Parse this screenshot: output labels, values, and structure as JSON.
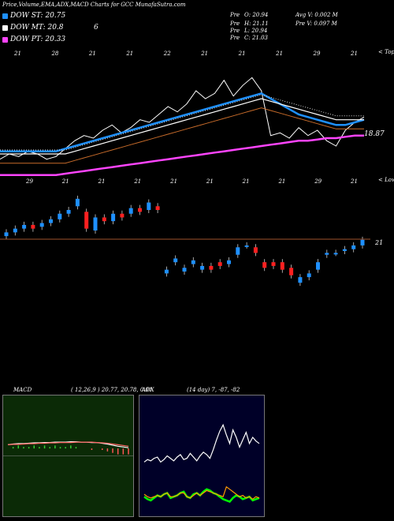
{
  "header": {
    "title": "Price,Volume,EMA,ADX,MACD Charts for GCC MunafaSutra.com",
    "stats": [
      {
        "label": "Pre",
        "value": "O: 20.94"
      },
      {
        "label": "Pre",
        "value": "H: 21.11"
      },
      {
        "label": "Pre",
        "value": "L: 20.94"
      },
      {
        "label": "Pre",
        "value": "C: 21.03"
      }
    ],
    "avg_volume": "Avg V: 0.002  M",
    "pre_volume": "Pre   V: 0.097  M"
  },
  "legend": [
    {
      "label": "DOW ST: 20.75",
      "color": "#1e90ff"
    },
    {
      "label": "DOW MT: 20.8",
      "color": "#ffffff"
    },
    {
      "label": "DOW PT: 20.33",
      "color": "#ff44ff"
    }
  ],
  "legend_extra": "6",
  "chart_data": [
    {
      "type": "line",
      "title": "Price EMA chart",
      "annotations": {
        "last_price": "18.87",
        "upper_note": "< Tops",
        "lower_note": "< Lows"
      },
      "top_date_labels": [
        "21",
        "28",
        "21",
        "21",
        "22",
        "21",
        "21",
        "21",
        "29",
        "21"
      ],
      "bottom_date_labels": [
        "29",
        "21",
        "21",
        "21",
        "21",
        "21",
        "21",
        "21",
        "29",
        "21"
      ],
      "x": [
        1,
        2,
        3,
        4,
        5,
        6,
        7,
        8,
        9,
        10,
        11,
        12,
        13,
        14,
        15,
        16,
        17,
        18,
        19,
        20,
        21,
        22,
        23,
        24,
        25,
        26,
        27,
        28,
        29,
        30,
        31,
        32,
        33,
        34,
        35,
        36,
        37,
        38,
        39,
        40
      ],
      "series": [
        {
          "name": "Price",
          "color": "#ffffff",
          "values": [
            18.3,
            18.5,
            18.4,
            18.6,
            18.5,
            18.3,
            18.4,
            18.7,
            19.0,
            19.2,
            19.1,
            19.4,
            19.6,
            19.3,
            19.5,
            19.8,
            19.7,
            20.0,
            20.3,
            20.1,
            20.4,
            20.9,
            20.6,
            20.8,
            21.3,
            20.7,
            21.1,
            21.4,
            20.9,
            19.2,
            19.3,
            19.1,
            19.5,
            19.2,
            19.4,
            19.0,
            18.8,
            19.4,
            19.7,
            19.9
          ]
        },
        {
          "name": "DOW ST",
          "color": "#1e90ff",
          "values": [
            18.6,
            18.6,
            18.6,
            18.6,
            18.6,
            18.6,
            18.6,
            18.7,
            18.8,
            18.9,
            19.0,
            19.1,
            19.2,
            19.3,
            19.4,
            19.5,
            19.6,
            19.7,
            19.8,
            19.9,
            20.0,
            20.1,
            20.2,
            20.3,
            20.4,
            20.5,
            20.6,
            20.7,
            20.8,
            20.6,
            20.4,
            20.2,
            20.0,
            19.9,
            19.8,
            19.7,
            19.6,
            19.6,
            19.7,
            19.8
          ]
        },
        {
          "name": "DOW MT",
          "color": "#ffffff",
          "values": [
            18.5,
            18.5,
            18.5,
            18.5,
            18.5,
            18.5,
            18.5,
            18.5,
            18.6,
            18.7,
            18.8,
            18.9,
            19.0,
            19.1,
            19.2,
            19.3,
            19.4,
            19.5,
            19.6,
            19.7,
            19.8,
            19.9,
            20.0,
            20.1,
            20.2,
            20.3,
            20.4,
            20.5,
            20.6,
            20.5,
            20.4,
            20.3,
            20.2,
            20.1,
            20.0,
            19.9,
            19.8,
            19.8,
            19.8,
            19.8
          ]
        },
        {
          "name": "DOW PT",
          "color": "#ff44ff",
          "values": [
            17.7,
            17.7,
            17.7,
            17.7,
            17.7,
            17.7,
            17.7,
            17.75,
            17.8,
            17.85,
            17.9,
            17.95,
            18.0,
            18.05,
            18.1,
            18.15,
            18.2,
            18.25,
            18.3,
            18.35,
            18.4,
            18.45,
            18.5,
            18.55,
            18.6,
            18.65,
            18.7,
            18.75,
            18.8,
            18.85,
            18.9,
            18.95,
            19.0,
            19.0,
            19.05,
            19.1,
            19.1,
            19.15,
            19.2,
            19.2
          ]
        }
      ],
      "ylim": [
        17.0,
        21.8
      ]
    },
    {
      "type": "bar",
      "title": "Candles",
      "reference_label": "21",
      "values": [
        {
          "o": 19.0,
          "c": 19.2,
          "up": true
        },
        {
          "o": 19.2,
          "c": 19.4,
          "up": true
        },
        {
          "o": 19.4,
          "c": 19.6,
          "up": true
        },
        {
          "o": 19.6,
          "c": 19.4,
          "up": false
        },
        {
          "o": 19.5,
          "c": 19.7,
          "up": true
        },
        {
          "o": 19.7,
          "c": 19.9,
          "up": true
        },
        {
          "o": 19.9,
          "c": 20.2,
          "up": true
        },
        {
          "o": 20.2,
          "c": 20.4,
          "up": true
        },
        {
          "o": 20.6,
          "c": 21.0,
          "up": true
        },
        {
          "o": 20.3,
          "c": 19.4,
          "up": false
        },
        {
          "o": 19.3,
          "c": 20.0,
          "up": true
        },
        {
          "o": 20.0,
          "c": 19.8,
          "up": false
        },
        {
          "o": 19.8,
          "c": 20.2,
          "up": true
        },
        {
          "o": 20.2,
          "c": 20.0,
          "up": false
        },
        {
          "o": 20.2,
          "c": 20.5,
          "up": true
        },
        {
          "o": 20.5,
          "c": 20.3,
          "up": false
        },
        {
          "o": 20.4,
          "c": 20.8,
          "up": true
        },
        {
          "o": 20.6,
          "c": 20.4,
          "up": false
        },
        {
          "o": 17.2,
          "c": 17.0,
          "up": true
        },
        {
          "o": 17.6,
          "c": 17.8,
          "up": true
        },
        {
          "o": 17.1,
          "c": 17.3,
          "up": true
        },
        {
          "o": 17.5,
          "c": 17.7,
          "up": true
        },
        {
          "o": 17.2,
          "c": 17.4,
          "up": true
        },
        {
          "o": 17.4,
          "c": 17.2,
          "up": false
        },
        {
          "o": 17.6,
          "c": 17.4,
          "up": false
        },
        {
          "o": 17.5,
          "c": 17.7,
          "up": true
        },
        {
          "o": 18.0,
          "c": 18.4,
          "up": true
        },
        {
          "o": 18.5,
          "c": 18.5,
          "up": true
        },
        {
          "o": 18.4,
          "c": 18.1,
          "up": false
        },
        {
          "o": 17.6,
          "c": 17.3,
          "up": false
        },
        {
          "o": 17.6,
          "c": 17.4,
          "up": false
        },
        {
          "o": 17.6,
          "c": 17.2,
          "up": false
        },
        {
          "o": 17.3,
          "c": 16.9,
          "up": false
        },
        {
          "o": 16.5,
          "c": 16.8,
          "up": true
        },
        {
          "o": 16.8,
          "c": 17.0,
          "up": true
        },
        {
          "o": 17.2,
          "c": 17.6,
          "up": true
        },
        {
          "o": 18.0,
          "c": 18.1,
          "up": true
        },
        {
          "o": 18.1,
          "c": 18.1,
          "up": true
        },
        {
          "o": 18.2,
          "c": 18.3,
          "up": true
        },
        {
          "o": 18.3,
          "c": 18.5,
          "up": true
        },
        {
          "o": 18.5,
          "c": 18.8,
          "up": true
        }
      ],
      "ylim": [
        16.0,
        21.5
      ]
    },
    {
      "type": "line",
      "title": "MACD",
      "label": "MACD",
      "params": "( 12,26,9 ) 20.77,  20.78,  0.01",
      "series": [
        {
          "name": "MACD",
          "color": "#ffffff",
          "values": [
            0.3,
            0.32,
            0.33,
            0.33,
            0.34,
            0.35,
            0.35,
            0.36,
            0.36,
            0.37,
            0.37,
            0.37,
            0.38,
            0.38,
            0.37,
            0.37,
            0.36,
            0.36,
            0.34,
            0.32,
            0.29,
            0.26,
            0.24,
            0.22
          ]
        },
        {
          "name": "Signal",
          "color": "#ff6666",
          "values": [
            0.3,
            0.31,
            0.31,
            0.32,
            0.33,
            0.33,
            0.34,
            0.34,
            0.35,
            0.35,
            0.36,
            0.36,
            0.36,
            0.37,
            0.37,
            0.37,
            0.37,
            0.36,
            0.35,
            0.34,
            0.32,
            0.3,
            0.28,
            0.26
          ]
        }
      ],
      "ylim": [
        -1.5,
        1.5
      ]
    },
    {
      "type": "line",
      "title": "ADX",
      "label": "ADX",
      "params": "(14 day) 7,  -87,  -82",
      "series": [
        {
          "name": "ADX",
          "color": "#ffffff",
          "values": [
            40,
            42,
            41,
            43,
            44,
            40,
            42,
            45,
            43,
            41,
            44,
            46,
            42,
            43,
            47,
            44,
            41,
            45,
            48,
            46,
            43,
            50,
            58,
            65,
            70,
            62,
            55,
            66,
            60,
            52,
            58,
            64,
            55,
            60,
            57,
            55
          ]
        },
        {
          "name": "DI+",
          "color": "#00ff00",
          "values": [
            12,
            10,
            9,
            11,
            13,
            12,
            14,
            15,
            11,
            12,
            13,
            15,
            16,
            12,
            11,
            14,
            15,
            13,
            16,
            18,
            17,
            15,
            14,
            12,
            10,
            9,
            8,
            11,
            13,
            12,
            10,
            11,
            12,
            9,
            10,
            11
          ]
        },
        {
          "name": "DI-",
          "color": "#ff9900",
          "values": [
            14,
            12,
            11,
            12,
            13,
            12,
            14,
            15,
            12,
            12,
            13,
            15,
            15,
            12,
            11,
            13,
            15,
            13,
            15,
            17,
            16,
            15,
            14,
            13,
            12,
            20,
            18,
            16,
            14,
            12,
            13,
            11,
            12,
            10,
            12,
            11
          ]
        }
      ],
      "ylim": [
        0,
        90
      ]
    }
  ]
}
